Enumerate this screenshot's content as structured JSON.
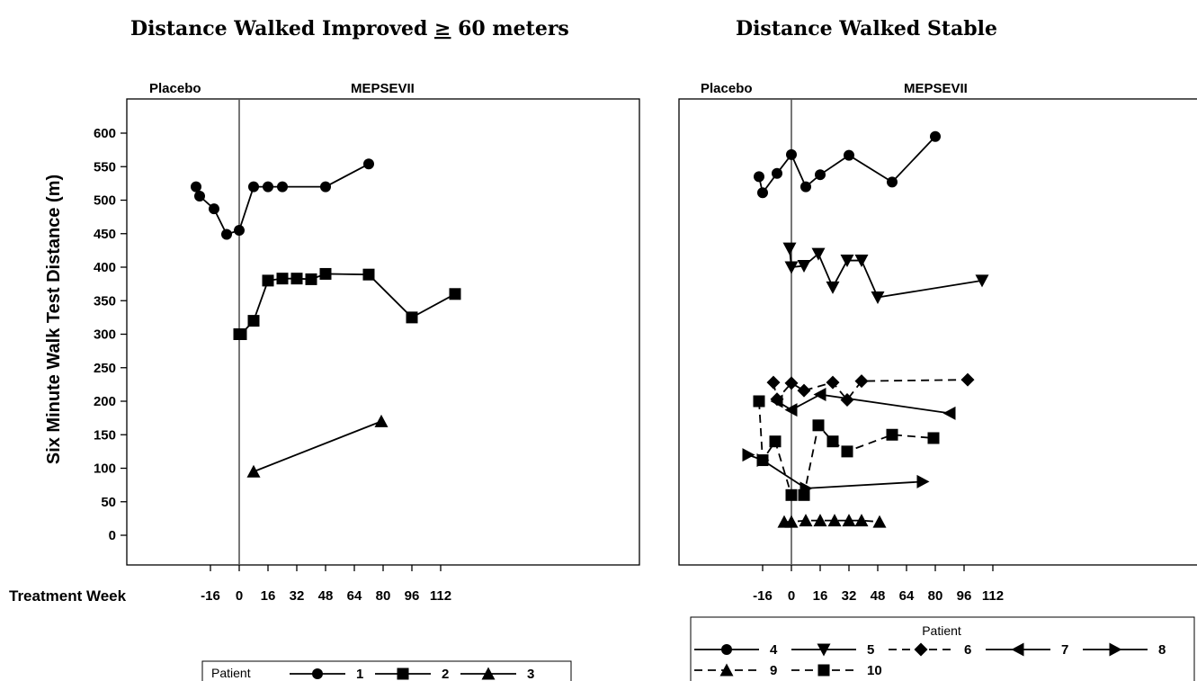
{
  "chart_data": [
    {
      "type": "line",
      "title": "Distance Walked Improved ≥ 60 meters",
      "ylabel": "Six Minute Walk Test Distance (m)",
      "xlabel": "Treatment Week",
      "phase_labels": [
        "Placebo",
        "MEPSEVII"
      ],
      "xlim": [
        -28,
        128
      ],
      "ylim": [
        -45,
        645
      ],
      "xticks": [
        -16,
        0,
        16,
        32,
        48,
        64,
        80,
        96,
        112
      ],
      "yticks": [
        0,
        50,
        100,
        150,
        200,
        250,
        300,
        350,
        400,
        450,
        500,
        550,
        600
      ],
      "legend_title": "Patient",
      "legend_position": "bottom",
      "series": [
        {
          "name": "1",
          "marker": "circle",
          "dashed": false,
          "x": [
            -24,
            -22,
            -14,
            -7,
            0,
            8,
            16,
            24,
            48,
            72
          ],
          "y": [
            520,
            506,
            487,
            449,
            455,
            520,
            520,
            520,
            520,
            554
          ]
        },
        {
          "name": "2",
          "marker": "square",
          "dashed": false,
          "x": [
            0,
            1,
            8,
            16,
            24,
            32,
            40,
            48,
            72,
            96,
            120
          ],
          "y": [
            300,
            300,
            320,
            380,
            383,
            383,
            382,
            390,
            389,
            325,
            360
          ]
        },
        {
          "name": "3",
          "marker": "triangle-up",
          "dashed": false,
          "x": [
            8,
            79
          ],
          "y": [
            95,
            170
          ]
        }
      ]
    },
    {
      "type": "line",
      "title": "Distance Walked Stable",
      "xlabel": "",
      "phase_labels": [
        "Placebo",
        "MEPSEVII"
      ],
      "xlim": [
        -28,
        128
      ],
      "ylim": [
        -45,
        645
      ],
      "xticks": [
        -16,
        0,
        16,
        32,
        48,
        64,
        80,
        96,
        112
      ],
      "legend_title": "Patient",
      "legend_position": "bottom",
      "series": [
        {
          "name": "4",
          "marker": "circle",
          "dashed": false,
          "x": [
            -18,
            -16,
            -8,
            0,
            8,
            16,
            32,
            56,
            80
          ],
          "y": [
            535,
            511,
            540,
            568,
            520,
            538,
            567,
            527,
            595
          ]
        },
        {
          "name": "5",
          "marker": "triangle-down",
          "dashed": false,
          "x": [
            -1,
            0,
            7,
            15,
            23,
            31,
            39,
            48,
            106
          ],
          "y": [
            428,
            400,
            402,
            420,
            370,
            410,
            410,
            355,
            380
          ]
        },
        {
          "name": "6",
          "marker": "diamond",
          "dashed": true,
          "x": [
            -10,
            -8,
            0,
            7,
            23,
            31,
            39,
            98
          ],
          "y": [
            228,
            203,
            227,
            216,
            228,
            202,
            230,
            232
          ]
        },
        {
          "name": "7",
          "marker": "triangle-left",
          "dashed": false,
          "x": [
            -8,
            0,
            16,
            88
          ],
          "y": [
            200,
            187,
            210,
            182
          ]
        },
        {
          "name": "8",
          "marker": "triangle-right",
          "dashed": false,
          "x": [
            -24,
            -16,
            8,
            73
          ],
          "y": [
            120,
            112,
            70,
            80
          ]
        },
        {
          "name": "9",
          "marker": "triangle-up",
          "dashed": true,
          "x": [
            -4,
            0,
            8,
            16,
            24,
            32,
            39,
            49
          ],
          "y": [
            20,
            20,
            22,
            22,
            22,
            22,
            22,
            20
          ]
        },
        {
          "name": "10",
          "marker": "square",
          "dashed": true,
          "x": [
            -18,
            -16,
            -9,
            0,
            7,
            15,
            23,
            31,
            56,
            79
          ],
          "y": [
            200,
            112,
            140,
            60,
            60,
            164,
            140,
            125,
            150,
            145
          ]
        }
      ]
    }
  ]
}
